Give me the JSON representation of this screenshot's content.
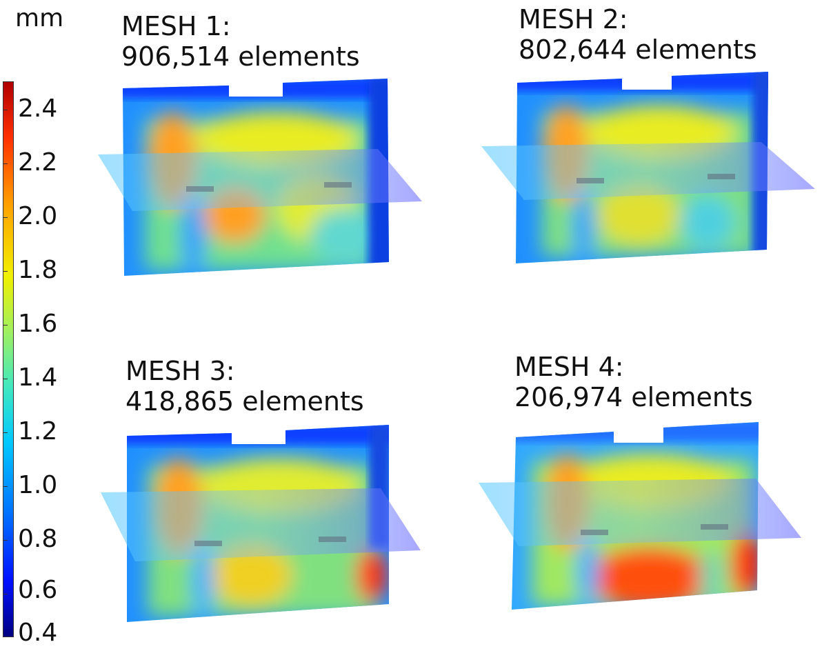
{
  "colorbar": {
    "unit": "mm",
    "ticks": [
      "2.4",
      "2.2",
      "2.0",
      "1.8",
      "1.6",
      "1.4",
      "1.2",
      "1.0",
      "0.8",
      "0.6",
      "0.4"
    ]
  },
  "meshes": [
    {
      "name": "MESH 1:",
      "elements": "906,514 elements"
    },
    {
      "name": "MESH 2:",
      "elements": "802,644 elements"
    },
    {
      "name": "MESH 3:",
      "elements": "418,865 elements"
    },
    {
      "name": "MESH 4:",
      "elements": "206,974 elements"
    }
  ],
  "colors": {
    "low": "#000080",
    "mid": "#a0f060",
    "high": "#b00000"
  }
}
